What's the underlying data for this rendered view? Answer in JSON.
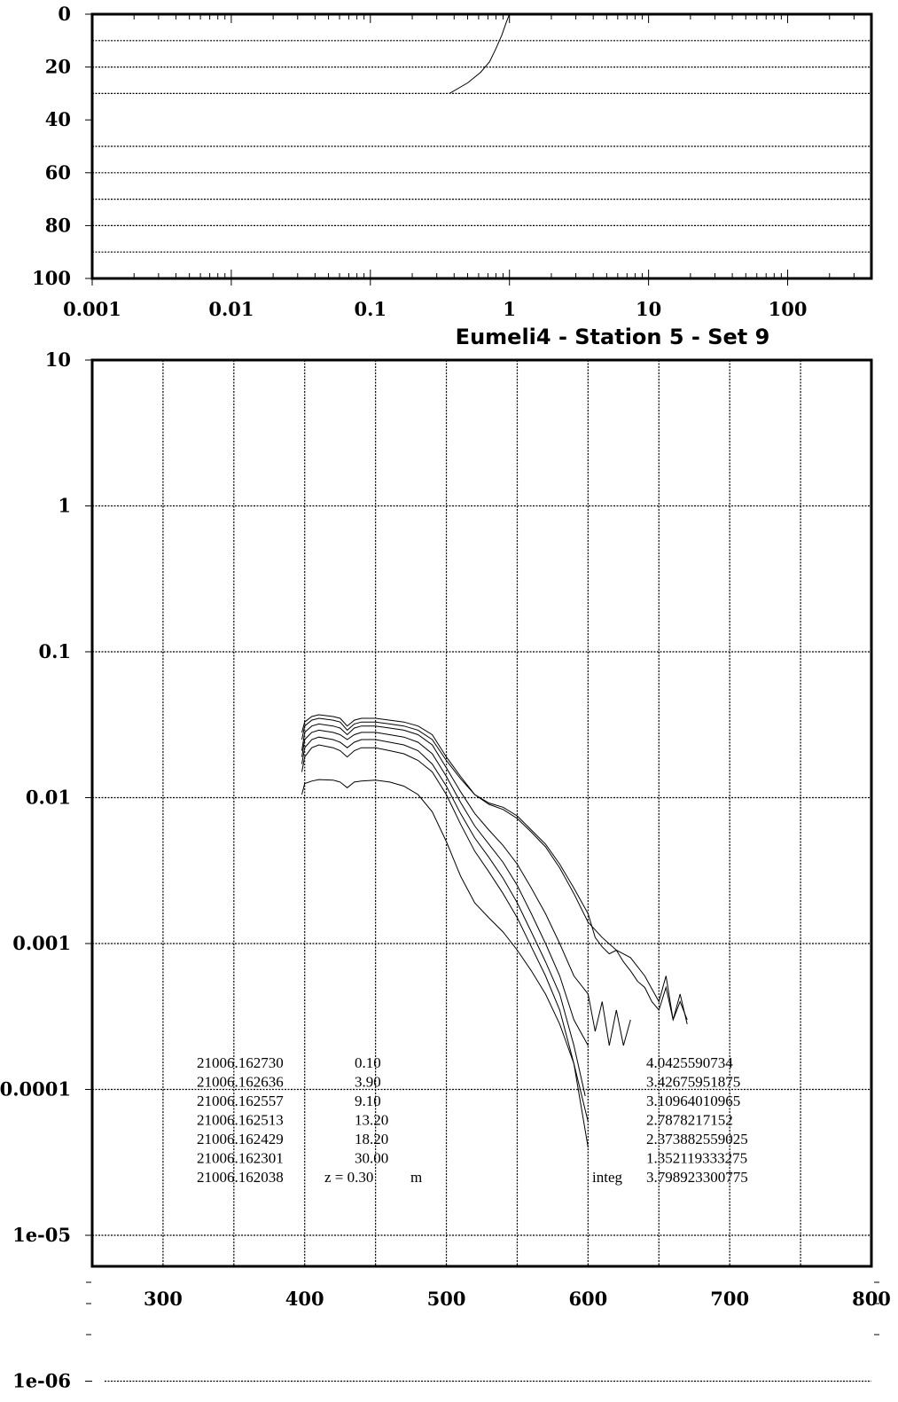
{
  "chart_data": [
    {
      "type": "line",
      "title": "",
      "xlabel": "",
      "ylabel": "",
      "x_scale": "log",
      "xlim": [
        0.001,
        400
      ],
      "ylim": [
        0,
        100
      ],
      "y_reversed": true,
      "x_tick_labels": [
        "0.001",
        "0.01",
        "0.1",
        "1",
        "10",
        "100"
      ],
      "x_tick_values": [
        0.001,
        0.01,
        0.1,
        1,
        10,
        100
      ],
      "y_tick_labels": [
        "0",
        "20",
        "40",
        "60",
        "80",
        "100"
      ],
      "y_tick_values": [
        0,
        20,
        40,
        60,
        80,
        100
      ],
      "y_gridlines": [
        10,
        20,
        30,
        50,
        60,
        70,
        80,
        90
      ],
      "grid": true,
      "series": [
        {
          "x": [
            1.0,
            0.95,
            0.88,
            0.8,
            0.72,
            0.62,
            0.5,
            0.37
          ],
          "y": [
            0,
            3,
            8,
            13,
            18,
            22,
            26,
            30
          ]
        }
      ]
    },
    {
      "type": "line",
      "title": "Eumeli4 - Station 5 - Set 9",
      "xlabel": "",
      "ylabel": "",
      "y_scale": "log",
      "xlim": [
        250,
        800
      ],
      "ylim": [
        1e-06,
        10
      ],
      "x_tick_labels": [
        "300",
        "400",
        "500",
        "600",
        "700",
        "800"
      ],
      "x_tick_values": [
        300,
        400,
        500,
        600,
        700,
        800
      ],
      "y_tick_labels": [
        "10",
        "1",
        "0.1",
        "0.01",
        "0.001",
        "0.0001",
        "1e-05",
        "1e-06"
      ],
      "y_tick_values": [
        10,
        1,
        0.1,
        0.01,
        0.001,
        0.0001,
        1e-05,
        1e-06
      ],
      "x_gridlines": [
        300,
        350,
        400,
        450,
        500,
        550,
        600,
        650,
        700,
        750
      ],
      "y_gridlines": [
        10,
        1,
        0.1,
        0.01,
        0.001,
        0.0001,
        1e-05
      ],
      "grid": true,
      "series": [
        {
          "x": [
            398,
            400,
            405,
            410,
            420,
            425,
            430,
            435,
            440,
            450,
            460,
            470,
            480,
            490,
            500,
            510,
            520,
            530,
            540,
            550,
            560,
            570,
            580,
            590,
            600,
            605,
            610,
            615,
            620,
            625,
            630,
            635,
            640,
            645,
            650,
            655,
            660,
            665,
            670
          ],
          "y": [
            0.028,
            0.033,
            0.036,
            0.037,
            0.036,
            0.035,
            0.031,
            0.034,
            0.035,
            0.035,
            0.034,
            0.033,
            0.031,
            0.027,
            0.019,
            0.014,
            0.0105,
            0.0092,
            0.0086,
            0.0075,
            0.006,
            0.0048,
            0.0035,
            0.0024,
            0.0016,
            0.0011,
            0.00095,
            0.00085,
            0.0009,
            0.00075,
            0.00065,
            0.00055,
            0.0005,
            0.0004,
            0.00035,
            0.0005,
            0.0003,
            0.00045,
            0.00028
          ]
        },
        {
          "x": [
            398,
            400,
            405,
            410,
            420,
            425,
            430,
            435,
            440,
            450,
            460,
            470,
            480,
            490,
            500,
            510,
            520,
            530,
            540,
            550,
            560,
            570,
            580,
            590,
            600,
            610,
            620,
            630,
            640,
            650,
            655,
            660,
            665,
            670
          ],
          "y": [
            0.025,
            0.031,
            0.034,
            0.035,
            0.034,
            0.033,
            0.029,
            0.032,
            0.033,
            0.033,
            0.032,
            0.031,
            0.029,
            0.025,
            0.018,
            0.0135,
            0.0105,
            0.009,
            0.0083,
            0.0072,
            0.0058,
            0.0046,
            0.0033,
            0.0022,
            0.0014,
            0.0011,
            0.0009,
            0.0008,
            0.0006,
            0.0004,
            0.0006,
            0.0003,
            0.0004,
            0.0003
          ]
        },
        {
          "x": [
            398,
            400,
            405,
            410,
            420,
            425,
            430,
            435,
            440,
            450,
            460,
            470,
            480,
            490,
            500,
            510,
            520,
            530,
            540,
            550,
            560,
            570,
            580,
            590,
            600,
            605,
            610,
            615,
            620,
            625,
            630
          ],
          "y": [
            0.021,
            0.028,
            0.031,
            0.032,
            0.031,
            0.03,
            0.027,
            0.03,
            0.031,
            0.031,
            0.03,
            0.029,
            0.027,
            0.023,
            0.016,
            0.011,
            0.0078,
            0.006,
            0.0047,
            0.0035,
            0.0024,
            0.0016,
            0.001,
            0.0006,
            0.00045,
            0.00025,
            0.0004,
            0.0002,
            0.00035,
            0.0002,
            0.0003
          ]
        },
        {
          "x": [
            398,
            400,
            405,
            410,
            420,
            425,
            430,
            435,
            440,
            450,
            460,
            470,
            480,
            490,
            500,
            510,
            520,
            530,
            540,
            550,
            560,
            570,
            580,
            590,
            600
          ],
          "y": [
            0.019,
            0.025,
            0.028,
            0.029,
            0.028,
            0.027,
            0.025,
            0.027,
            0.028,
            0.028,
            0.027,
            0.026,
            0.024,
            0.02,
            0.014,
            0.0093,
            0.0064,
            0.0048,
            0.0036,
            0.0025,
            0.0016,
            0.001,
            0.0006,
            0.0003,
            0.0002
          ]
        },
        {
          "x": [
            398,
            400,
            405,
            410,
            420,
            425,
            430,
            435,
            440,
            450,
            460,
            470,
            480,
            490,
            500,
            510,
            520,
            530,
            540,
            550,
            560,
            570,
            580,
            590,
            598
          ],
          "y": [
            0.017,
            0.022,
            0.025,
            0.026,
            0.025,
            0.024,
            0.022,
            0.024,
            0.025,
            0.025,
            0.024,
            0.023,
            0.021,
            0.017,
            0.012,
            0.0078,
            0.0053,
            0.0039,
            0.0028,
            0.0019,
            0.0012,
            0.00075,
            0.00045,
            0.0002,
            9e-05
          ]
        },
        {
          "x": [
            398,
            400,
            405,
            410,
            420,
            425,
            430,
            435,
            440,
            450,
            460,
            470,
            480,
            490,
            500,
            510,
            520,
            530,
            540,
            550,
            560,
            570,
            580,
            590,
            600
          ],
          "y": [
            0.015,
            0.019,
            0.022,
            0.023,
            0.022,
            0.021,
            0.019,
            0.021,
            0.022,
            0.022,
            0.021,
            0.02,
            0.018,
            0.015,
            0.0105,
            0.0066,
            0.0043,
            0.0031,
            0.0022,
            0.0015,
            0.00095,
            0.0006,
            0.00035,
            0.00015,
            6e-05
          ]
        },
        {
          "x": [
            398,
            400,
            405,
            410,
            420,
            425,
            430,
            435,
            440,
            450,
            460,
            470,
            480,
            490,
            500,
            510,
            520,
            530,
            540,
            550,
            560,
            570,
            580,
            590,
            600
          ],
          "y": [
            0.0105,
            0.0125,
            0.013,
            0.0133,
            0.0132,
            0.0128,
            0.0117,
            0.0128,
            0.013,
            0.0132,
            0.0128,
            0.012,
            0.0105,
            0.008,
            0.005,
            0.0029,
            0.0019,
            0.0015,
            0.0012,
            0.0009,
            0.00065,
            0.00045,
            0.00028,
            0.00015,
            4e-05
          ]
        }
      ],
      "annotations": {
        "rows": [
          [
            "21006.162730",
            "0.10",
            "4.0425590734"
          ],
          [
            "21006.162636",
            "3.90",
            "3.42675951875"
          ],
          [
            "21006.162557",
            "9.10",
            "3.10964010965"
          ],
          [
            "21006.162513",
            "13.20",
            "2.7878217152"
          ],
          [
            "21006.162429",
            "18.20",
            "2.373882559025"
          ],
          [
            "21006.162301",
            "30.00",
            "1.352119333275"
          ]
        ],
        "last_row": {
          "id": "21006.162038",
          "z_label": "z = 0.30",
          "unit": "m",
          "integ_label": "integ",
          "integ_value": "3.798923300775"
        }
      }
    }
  ]
}
